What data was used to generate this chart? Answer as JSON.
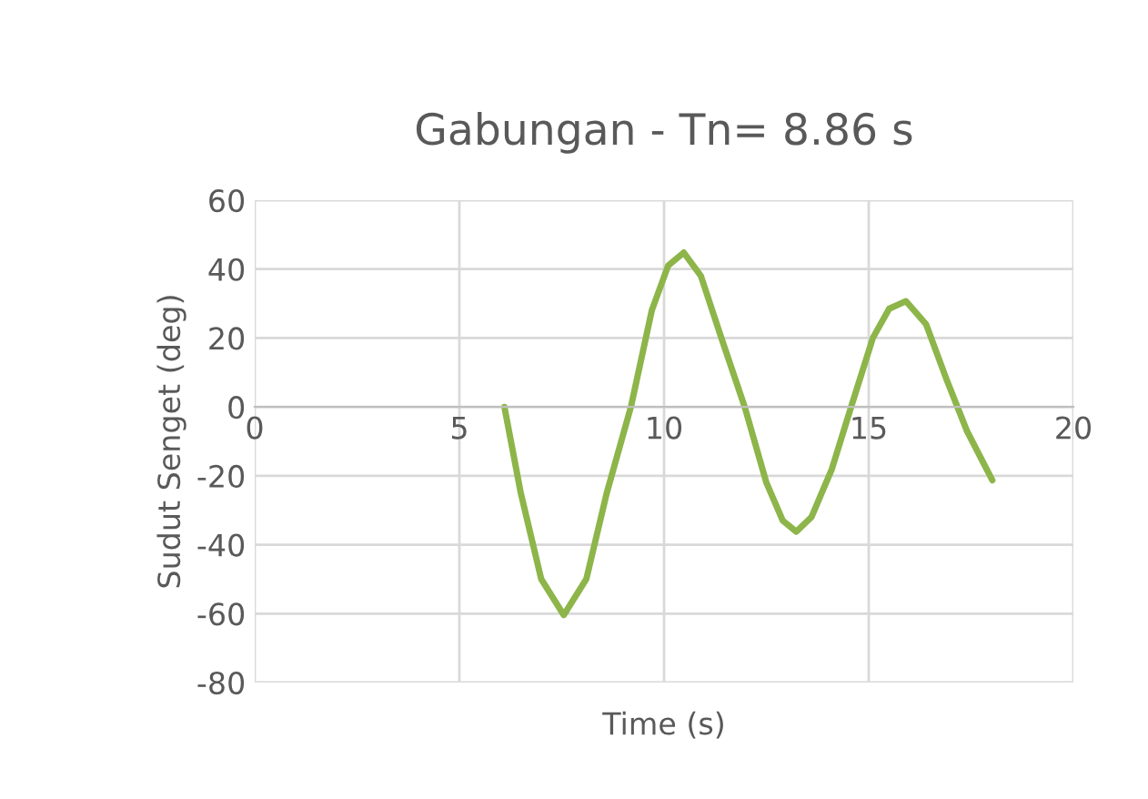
{
  "chart_data": {
    "type": "line",
    "title": "Gabungan - Tn= 8.86 s",
    "xlabel": "Time (s)",
    "ylabel": "Sudut Senget (deg)",
    "xlim": [
      0,
      20
    ],
    "xticks": [
      0,
      5,
      10,
      15,
      20
    ],
    "ylim": [
      -80,
      60
    ],
    "yticks": [
      -80,
      -60,
      -40,
      -20,
      0,
      20,
      40,
      60
    ],
    "grid": true,
    "legend": false,
    "series": [
      {
        "color": "#8db54a",
        "x": [
          6.1,
          6.5,
          7.0,
          7.55,
          8.1,
          8.6,
          9.19,
          9.7,
          10.1,
          10.48,
          10.9,
          11.4,
          11.97,
          12.5,
          12.9,
          13.23,
          13.6,
          14.1,
          14.57,
          15.1,
          15.5,
          15.91,
          16.4,
          16.9,
          17.4,
          18.02
        ],
        "values": [
          0,
          -25,
          -50,
          -60.4,
          -50,
          -25,
          0,
          28,
          41,
          44.8,
          38,
          20,
          0,
          -22,
          -33,
          -36.2,
          -32,
          -18,
          0,
          20,
          28.5,
          30.7,
          24,
          8,
          -7,
          -21.3
        ]
      }
    ]
  }
}
